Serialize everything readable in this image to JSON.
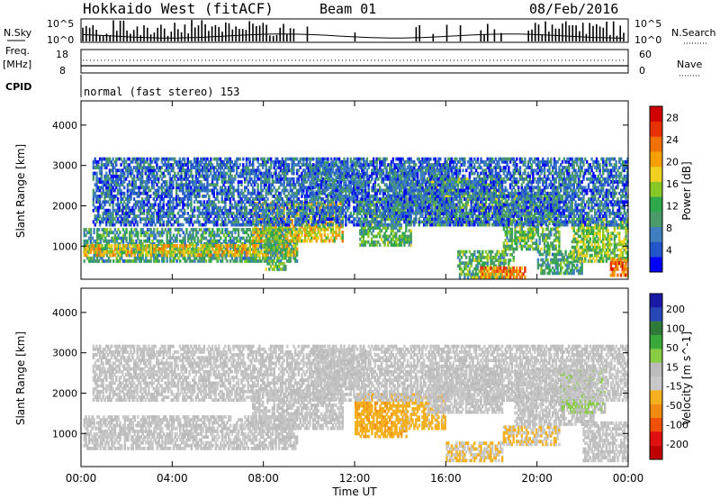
{
  "header": {
    "site": "Hokkaido West (fitACF)",
    "beam": "Beam 01",
    "date": "08/Feb/2016"
  },
  "top_panels": {
    "nsky_label": "N.Sky",
    "nsearch_label": "N.Search",
    "nsky_ticks": [
      "10^5",
      "10^0"
    ],
    "nsearch_ticks": [
      "10^5",
      "10^0"
    ],
    "freq_label": "Freq.",
    "freq_unit": "[MHz]",
    "freq_ticks": [
      "18",
      "8"
    ],
    "nave_label": "Nave",
    "nave_ticks": [
      "60",
      "0"
    ],
    "cpid_label": "CPID",
    "cpid_text": "normal (fast stereo) 153"
  },
  "colors": {
    "power": [
      "#0000ff",
      "#2255cc",
      "#3f7fbf",
      "#4a9a6a",
      "#2ea84a",
      "#88c826",
      "#f0d020",
      "#f5a000",
      "#f07000",
      "#e83000",
      "#d00000"
    ],
    "velocity": [
      "#1a1aa6",
      "#2847b8",
      "#2f7a3a",
      "#3aa83a",
      "#88cc44",
      "#bcbcbc",
      "#c8c8c8",
      "#f5b020",
      "#f08a10",
      "#f05000",
      "#e01010",
      "#c00000"
    ]
  },
  "chart_data": [
    {
      "type": "heatmap",
      "name": "power",
      "ylabel": "Slant Range [km]",
      "yticks": [
        1000,
        2000,
        3000,
        4000
      ],
      "ylim": [
        180,
        4600
      ],
      "xticks": [
        "00:00",
        "04:00",
        "08:00",
        "12:00",
        "16:00",
        "20:00",
        "00:00"
      ],
      "xlim_hours": [
        0,
        24
      ],
      "colorbar": {
        "label": "Power [dB]",
        "ticks": [
          4,
          8,
          12,
          16,
          20,
          24,
          28
        ],
        "range": [
          0,
          30
        ]
      },
      "bands": [
        {
          "t0": 0.1,
          "t1": 9.5,
          "r0": 600,
          "r1": 1450,
          "val": 10
        },
        {
          "t0": 0.1,
          "t1": 9.5,
          "r0": 750,
          "r1": 1050,
          "val": 18
        },
        {
          "t0": 7.5,
          "t1": 11.5,
          "r0": 1100,
          "r1": 2100,
          "val": 18
        },
        {
          "t0": 8.0,
          "t1": 9.0,
          "r0": 400,
          "r1": 1500,
          "val": 12
        },
        {
          "t0": 10.0,
          "t1": 12.5,
          "r0": 2100,
          "r1": 3100,
          "val": 8
        },
        {
          "t0": 12.2,
          "t1": 14.5,
          "r0": 1000,
          "r1": 2200,
          "val": 12
        },
        {
          "t0": 13.5,
          "t1": 16.3,
          "r0": 1800,
          "r1": 3000,
          "val": 9
        },
        {
          "t0": 15.2,
          "t1": 18.5,
          "r0": 1500,
          "r1": 2700,
          "val": 14
        },
        {
          "t0": 16.5,
          "t1": 19.0,
          "r0": 200,
          "r1": 900,
          "val": 12
        },
        {
          "t0": 17.5,
          "t1": 19.5,
          "r0": 200,
          "r1": 500,
          "val": 22
        },
        {
          "t0": 18.5,
          "t1": 21.0,
          "r0": 900,
          "r1": 2300,
          "val": 12
        },
        {
          "t0": 20.0,
          "t1": 22.0,
          "r0": 300,
          "r1": 900,
          "val": 10
        },
        {
          "t0": 21.5,
          "t1": 24.0,
          "r0": 600,
          "r1": 1700,
          "val": 14
        },
        {
          "t0": 23.2,
          "t1": 24.0,
          "r0": 250,
          "r1": 700,
          "val": 24
        },
        {
          "t0": 0.5,
          "t1": 24.0,
          "r0": 1500,
          "r1": 3200,
          "val": 6
        }
      ]
    },
    {
      "type": "heatmap",
      "name": "velocity",
      "ylabel": "Slant Range [km]",
      "yticks": [
        1000,
        2000,
        3000,
        4000
      ],
      "ylim": [
        180,
        4600
      ],
      "xlabel": "Time UT",
      "xticks": [
        "00:00",
        "04:00",
        "08:00",
        "12:00",
        "16:00",
        "20:00",
        "00:00"
      ],
      "xlim_hours": [
        0,
        24
      ],
      "colorbar": {
        "label": "Velocity [m s^-1]",
        "ticks": [
          200,
          100,
          50,
          15,
          -15,
          -50,
          -100,
          -200
        ],
        "range": [
          -250,
          250
        ]
      },
      "bands": [
        {
          "t0": 0.1,
          "t1": 9.5,
          "r0": 600,
          "r1": 1450,
          "val": 0
        },
        {
          "t0": 7.5,
          "t1": 11.5,
          "r0": 1100,
          "r1": 2100,
          "val": 0
        },
        {
          "t0": 10.0,
          "t1": 12.5,
          "r0": 2100,
          "r1": 3100,
          "val": 0
        },
        {
          "t0": 12.0,
          "t1": 14.3,
          "r0": 900,
          "r1": 2000,
          "val": -70
        },
        {
          "t0": 14.0,
          "t1": 16.0,
          "r0": 1100,
          "r1": 2000,
          "val": -55
        },
        {
          "t0": 15.2,
          "t1": 18.5,
          "r0": 1500,
          "r1": 2700,
          "val": 0
        },
        {
          "t0": 16.0,
          "t1": 18.5,
          "r0": 300,
          "r1": 800,
          "val": -40
        },
        {
          "t0": 18.5,
          "t1": 21.0,
          "r0": 700,
          "r1": 1200,
          "val": -40
        },
        {
          "t0": 19.0,
          "t1": 22.5,
          "r0": 1200,
          "r1": 2600,
          "val": 0
        },
        {
          "t0": 21.0,
          "t1": 23.0,
          "r0": 1500,
          "r1": 2600,
          "val": 40
        },
        {
          "t0": 22.0,
          "t1": 24.0,
          "r0": 300,
          "r1": 1300,
          "val": 0
        },
        {
          "t0": 0.5,
          "t1": 24.0,
          "r0": 1800,
          "r1": 3200,
          "val": 0
        }
      ]
    }
  ]
}
